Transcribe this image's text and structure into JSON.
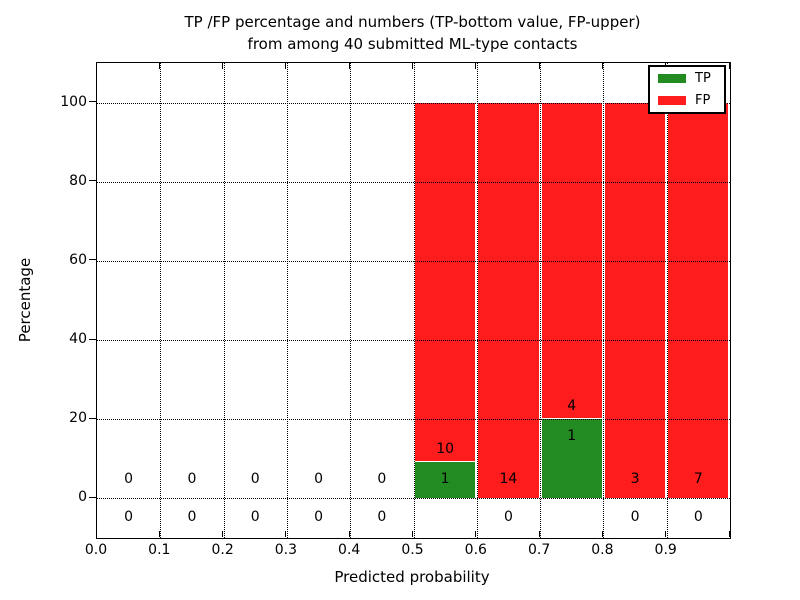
{
  "figure": {
    "title_line1": "TP /FP percentage and numbers (TP-bottom value, FP-upper)",
    "title_line2": "from among 40 submitted ML-type contacts",
    "xlabel": "Predicted probability",
    "ylabel": "Percentage"
  },
  "legend": {
    "position": "upper right",
    "items": [
      {
        "label": "TP",
        "color": "#228b22"
      },
      {
        "label": "FP",
        "color": "#ff1c1c"
      }
    ]
  },
  "chart_data": {
    "type": "bar",
    "stacked": true,
    "title": "TP /FP percentage and numbers (TP-bottom value, FP-upper) from among 40 submitted ML-type contacts",
    "xlabel": "Predicted probability",
    "ylabel": "Percentage",
    "xlim": [
      0.0,
      1.0
    ],
    "ylim": [
      -10,
      110
    ],
    "grid": "dotted both axes, drawn over bars",
    "legend_position": "upper right",
    "bin_edges": [
      0.0,
      0.1,
      0.2,
      0.3,
      0.4,
      0.5,
      0.6,
      0.7,
      0.8,
      0.9,
      1.0
    ],
    "xtick_labels": [
      "0.0",
      "0.1",
      "0.2",
      "0.3",
      "0.4",
      "0.5",
      "0.6",
      "0.7",
      "0.8",
      "0.9"
    ],
    "yticks": [
      0,
      20,
      40,
      60,
      80,
      100
    ],
    "total_contacts": 40,
    "series": [
      {
        "name": "TP",
        "color": "#228b22",
        "counts": [
          0,
          0,
          0,
          0,
          0,
          1,
          0,
          1,
          0,
          0
        ],
        "percent": [
          0,
          0,
          0,
          0,
          0,
          9.09,
          0,
          20,
          0,
          0
        ]
      },
      {
        "name": "FP",
        "color": "#ff1c1c",
        "counts": [
          0,
          0,
          0,
          0,
          0,
          10,
          14,
          4,
          3,
          7
        ],
        "percent": [
          0,
          0,
          0,
          0,
          0,
          90.91,
          100,
          80,
          100,
          100
        ]
      }
    ]
  }
}
